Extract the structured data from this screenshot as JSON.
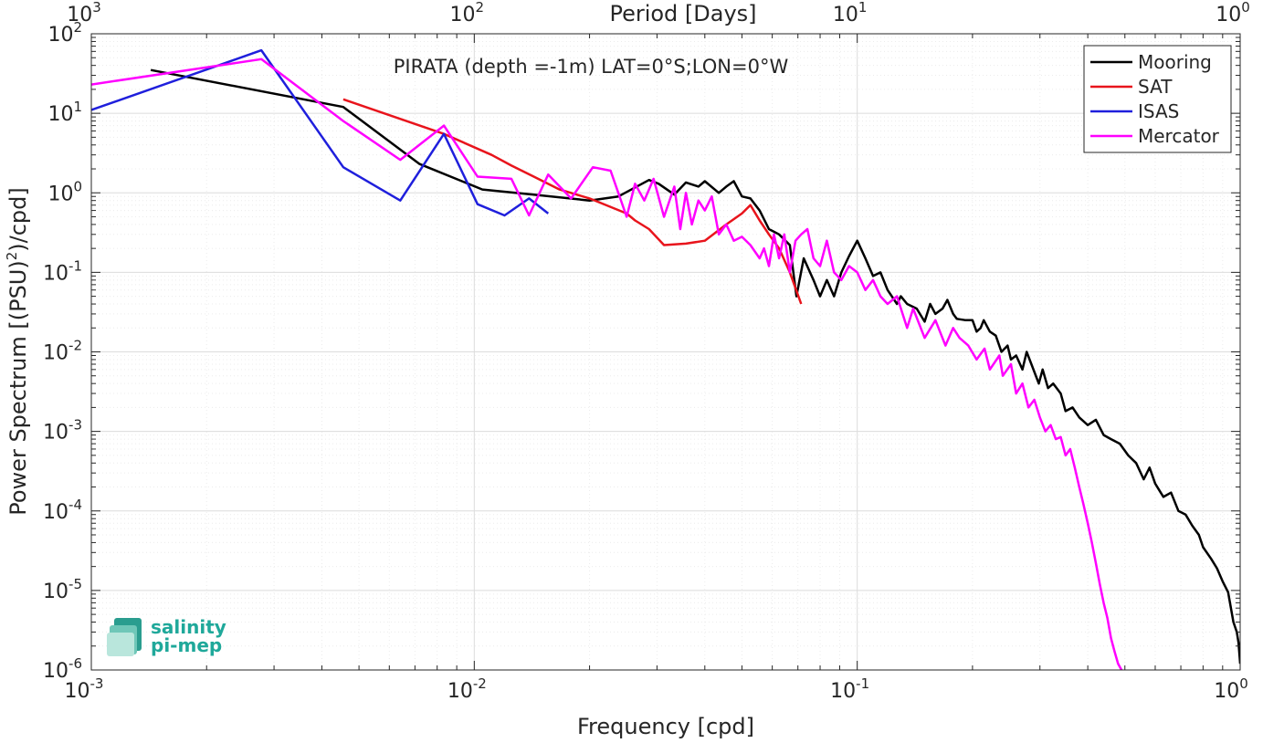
{
  "chart_data": {
    "type": "line",
    "title": "PIRATA (depth =-1m) LAT=0°S;LON=0°W",
    "xlabel": "Frequency [cpd]",
    "ylabel_prefix": "Power Spectrum [(PSU)",
    "ylabel_sup": "2",
    "ylabel_suffix": ")/cpd]",
    "top_xlabel": "Period [Days]",
    "x_scale": "log",
    "y_scale": "log",
    "xlim": [
      0.001,
      1
    ],
    "ylim": [
      1e-06,
      100
    ],
    "grid": true,
    "minor_grid": true,
    "legend_position": "top-right",
    "x_ticks": [
      {
        "value": 0.001,
        "base": "10",
        "exp": "-3"
      },
      {
        "value": 0.01,
        "base": "10",
        "exp": "-2"
      },
      {
        "value": 0.1,
        "base": "10",
        "exp": "-1"
      },
      {
        "value": 1,
        "base": "10",
        "exp": "0"
      }
    ],
    "y_ticks": [
      {
        "value": 100,
        "base": "10",
        "exp": "2"
      },
      {
        "value": 10,
        "base": "10",
        "exp": "1"
      },
      {
        "value": 1,
        "base": "10",
        "exp": "0"
      },
      {
        "value": 0.1,
        "base": "10",
        "exp": "-1"
      },
      {
        "value": 0.01,
        "base": "10",
        "exp": "-2"
      },
      {
        "value": 0.001,
        "base": "10",
        "exp": "-3"
      },
      {
        "value": 0.0001,
        "base": "10",
        "exp": "-4"
      },
      {
        "value": 1e-05,
        "base": "10",
        "exp": "-5"
      },
      {
        "value": 1e-06,
        "base": "10",
        "exp": "-6"
      }
    ],
    "top_ticks": [
      {
        "value": 0.001,
        "base": "10",
        "exp": "3"
      },
      {
        "value": 0.01,
        "base": "10",
        "exp": "2"
      },
      {
        "value": 0.1,
        "base": "10",
        "exp": "1"
      },
      {
        "value": 1,
        "base": "10",
        "exp": "0"
      }
    ],
    "series": [
      {
        "name": "Mooring",
        "color": "#000000",
        "points": [
          [
            0.00143,
            35
          ],
          [
            0.00455,
            12
          ],
          [
            0.0072,
            2.3
          ],
          [
            0.0105,
            1.1
          ],
          [
            0.0143,
            0.95
          ],
          [
            0.02,
            0.8
          ],
          [
            0.0238,
            0.9
          ],
          [
            0.0286,
            1.45
          ],
          [
            0.0303,
            1.3
          ],
          [
            0.0333,
            0.95
          ],
          [
            0.0357,
            1.35
          ],
          [
            0.0385,
            1.2
          ],
          [
            0.04,
            1.4
          ],
          [
            0.0435,
            1.0
          ],
          [
            0.0455,
            1.2
          ],
          [
            0.0476,
            1.4
          ],
          [
            0.05,
            0.9
          ],
          [
            0.0526,
            0.85
          ],
          [
            0.0556,
            0.6
          ],
          [
            0.0588,
            0.35
          ],
          [
            0.0625,
            0.3
          ],
          [
            0.0667,
            0.22
          ],
          [
            0.0694,
            0.05
          ],
          [
            0.0725,
            0.15
          ],
          [
            0.0769,
            0.08
          ],
          [
            0.08,
            0.05
          ],
          [
            0.0833,
            0.08
          ],
          [
            0.087,
            0.05
          ],
          [
            0.0909,
            0.1
          ],
          [
            0.0952,
            0.16
          ],
          [
            0.1,
            0.25
          ],
          [
            0.105,
            0.15
          ],
          [
            0.11,
            0.09
          ],
          [
            0.115,
            0.1
          ],
          [
            0.12,
            0.06
          ],
          [
            0.127,
            0.04
          ],
          [
            0.13,
            0.05
          ],
          [
            0.135,
            0.04
          ],
          [
            0.143,
            0.035
          ],
          [
            0.15,
            0.024
          ],
          [
            0.155,
            0.04
          ],
          [
            0.16,
            0.03
          ],
          [
            0.167,
            0.035
          ],
          [
            0.172,
            0.045
          ],
          [
            0.178,
            0.03
          ],
          [
            0.182,
            0.026
          ],
          [
            0.192,
            0.025
          ],
          [
            0.2,
            0.025
          ],
          [
            0.205,
            0.018
          ],
          [
            0.21,
            0.02
          ],
          [
            0.214,
            0.025
          ],
          [
            0.222,
            0.018
          ],
          [
            0.23,
            0.016
          ],
          [
            0.238,
            0.01
          ],
          [
            0.247,
            0.012
          ],
          [
            0.252,
            0.008
          ],
          [
            0.26,
            0.009
          ],
          [
            0.27,
            0.006
          ],
          [
            0.277,
            0.01
          ],
          [
            0.285,
            0.007
          ],
          [
            0.298,
            0.004
          ],
          [
            0.305,
            0.006
          ],
          [
            0.315,
            0.0035
          ],
          [
            0.325,
            0.004
          ],
          [
            0.34,
            0.003
          ],
          [
            0.35,
            0.0018
          ],
          [
            0.365,
            0.002
          ],
          [
            0.38,
            0.0015
          ],
          [
            0.4,
            0.0012
          ],
          [
            0.42,
            0.0014
          ],
          [
            0.44,
            0.0009
          ],
          [
            0.46,
            0.0008
          ],
          [
            0.485,
            0.0007
          ],
          [
            0.51,
            0.0005
          ],
          [
            0.535,
            0.0004
          ],
          [
            0.56,
            0.00025
          ],
          [
            0.58,
            0.00035
          ],
          [
            0.6,
            0.00022
          ],
          [
            0.63,
            0.00015
          ],
          [
            0.66,
            0.00017
          ],
          [
            0.69,
            0.0001
          ],
          [
            0.72,
            9e-05
          ],
          [
            0.75,
            6.5e-05
          ],
          [
            0.78,
            5e-05
          ],
          [
            0.8,
            3.5e-05
          ],
          [
            0.84,
            2.5e-05
          ],
          [
            0.87,
            1.9e-05
          ],
          [
            0.9,
            1.3e-05
          ],
          [
            0.93,
            9.5e-06
          ],
          [
            0.96,
            4e-06
          ],
          [
            0.98,
            3e-06
          ],
          [
            0.99,
            2.2e-06
          ],
          [
            1.0,
            1.2e-06
          ]
        ]
      },
      {
        "name": "SAT",
        "color": "#e8141c",
        "points": [
          [
            0.00455,
            15
          ],
          [
            0.00833,
            5.5
          ],
          [
            0.0111,
            3
          ],
          [
            0.0125,
            2.2
          ],
          [
            0.0143,
            1.6
          ],
          [
            0.0167,
            1.1
          ],
          [
            0.02,
            0.85
          ],
          [
            0.025,
            0.55
          ],
          [
            0.0263,
            0.45
          ],
          [
            0.0286,
            0.35
          ],
          [
            0.0313,
            0.22
          ],
          [
            0.0357,
            0.23
          ],
          [
            0.04,
            0.25
          ],
          [
            0.0455,
            0.4
          ],
          [
            0.05,
            0.55
          ],
          [
            0.0526,
            0.7
          ],
          [
            0.0556,
            0.45
          ],
          [
            0.0588,
            0.3
          ],
          [
            0.0625,
            0.2
          ],
          [
            0.0667,
            0.1
          ],
          [
            0.0714,
            0.04
          ]
        ]
      },
      {
        "name": "ISAS",
        "color": "#1f1fdc",
        "points": [
          [
            0.001,
            11
          ],
          [
            0.00278,
            62
          ],
          [
            0.00455,
            2.1
          ],
          [
            0.00641,
            0.8
          ],
          [
            0.00833,
            5.5
          ],
          [
            0.0102,
            0.72
          ],
          [
            0.012,
            0.52
          ],
          [
            0.0139,
            0.85
          ],
          [
            0.0156,
            0.55
          ]
        ]
      },
      {
        "name": "Mercator",
        "color": "#ff00ff",
        "points": [
          [
            0.001,
            23
          ],
          [
            0.00278,
            48
          ],
          [
            0.00455,
            8
          ],
          [
            0.00641,
            2.6
          ],
          [
            0.00833,
            7
          ],
          [
            0.0102,
            1.6
          ],
          [
            0.0125,
            1.5
          ],
          [
            0.0139,
            0.52
          ],
          [
            0.0156,
            1.7
          ],
          [
            0.0179,
            0.85
          ],
          [
            0.0204,
            2.1
          ],
          [
            0.0227,
            1.9
          ],
          [
            0.025,
            0.5
          ],
          [
            0.0263,
            1.3
          ],
          [
            0.0278,
            0.8
          ],
          [
            0.0294,
            1.5
          ],
          [
            0.0313,
            0.5
          ],
          [
            0.0333,
            1.2
          ],
          [
            0.0345,
            0.35
          ],
          [
            0.0357,
            1.0
          ],
          [
            0.037,
            0.4
          ],
          [
            0.0385,
            0.8
          ],
          [
            0.04,
            0.6
          ],
          [
            0.0417,
            0.9
          ],
          [
            0.0435,
            0.3
          ],
          [
            0.0455,
            0.4
          ],
          [
            0.0476,
            0.25
          ],
          [
            0.05,
            0.28
          ],
          [
            0.0526,
            0.22
          ],
          [
            0.0556,
            0.15
          ],
          [
            0.0571,
            0.2
          ],
          [
            0.0588,
            0.12
          ],
          [
            0.0606,
            0.3
          ],
          [
            0.0625,
            0.15
          ],
          [
            0.0645,
            0.3
          ],
          [
            0.0667,
            0.1
          ],
          [
            0.069,
            0.25
          ],
          [
            0.0714,
            0.3
          ],
          [
            0.0741,
            0.35
          ],
          [
            0.0769,
            0.15
          ],
          [
            0.08,
            0.12
          ],
          [
            0.0833,
            0.25
          ],
          [
            0.087,
            0.1
          ],
          [
            0.0909,
            0.08
          ],
          [
            0.0952,
            0.12
          ],
          [
            0.1,
            0.1
          ],
          [
            0.105,
            0.06
          ],
          [
            0.11,
            0.08
          ],
          [
            0.115,
            0.05
          ],
          [
            0.12,
            0.04
          ],
          [
            0.127,
            0.05
          ],
          [
            0.135,
            0.02
          ],
          [
            0.14,
            0.035
          ],
          [
            0.15,
            0.015
          ],
          [
            0.16,
            0.025
          ],
          [
            0.17,
            0.012
          ],
          [
            0.178,
            0.02
          ],
          [
            0.185,
            0.015
          ],
          [
            0.195,
            0.012
          ],
          [
            0.205,
            0.008
          ],
          [
            0.215,
            0.011
          ],
          [
            0.222,
            0.006
          ],
          [
            0.235,
            0.009
          ],
          [
            0.24,
            0.005
          ],
          [
            0.252,
            0.007
          ],
          [
            0.26,
            0.003
          ],
          [
            0.27,
            0.004
          ],
          [
            0.28,
            0.002
          ],
          [
            0.29,
            0.0025
          ],
          [
            0.3,
            0.0015
          ],
          [
            0.31,
            0.001
          ],
          [
            0.32,
            0.0012
          ],
          [
            0.33,
            0.0008
          ],
          [
            0.34,
            0.00085
          ],
          [
            0.35,
            0.0005
          ],
          [
            0.36,
            0.0006
          ],
          [
            0.37,
            0.00035
          ],
          [
            0.38,
            0.0002
          ],
          [
            0.39,
            0.00012
          ],
          [
            0.4,
            7e-05
          ],
          [
            0.41,
            4e-05
          ],
          [
            0.42,
            2.2e-05
          ],
          [
            0.43,
            1.2e-05
          ],
          [
            0.44,
            7e-06
          ],
          [
            0.45,
            4.5e-06
          ],
          [
            0.46,
            2.5e-06
          ],
          [
            0.47,
            1.7e-06
          ],
          [
            0.48,
            1.2e-06
          ],
          [
            0.49,
            1e-06
          ]
        ]
      }
    ]
  },
  "logo": {
    "line1": "salinity",
    "line2": "pi-mep"
  }
}
